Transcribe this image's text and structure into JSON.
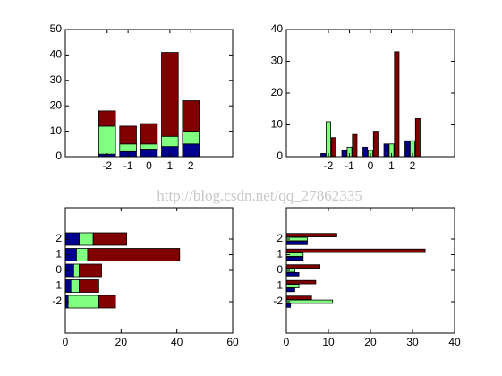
{
  "watermark": "http://blog.csdn.net/qq_27862335",
  "chart_data": [
    {
      "type": "bar",
      "stacked": true,
      "orientation": "vertical",
      "x": [
        -2,
        -1,
        0,
        1,
        2
      ],
      "xlim": [
        -4,
        4
      ],
      "xticks": [
        -2,
        -1,
        0,
        1,
        2
      ],
      "ylim": [
        0,
        50
      ],
      "yticks": [
        0,
        10,
        20,
        30,
        40,
        50
      ],
      "series": [
        {
          "color": "#00008f",
          "values": [
            1,
            2,
            3,
            4,
            5
          ]
        },
        {
          "color": "#80ff80",
          "values": [
            11,
            3,
            2,
            4,
            5
          ]
        },
        {
          "color": "#800000",
          "values": [
            6,
            7,
            8,
            33,
            12
          ]
        }
      ]
    },
    {
      "type": "bar",
      "stacked": false,
      "orientation": "vertical",
      "x": [
        -2,
        -1,
        0,
        1,
        2
      ],
      "xlim": [
        -4,
        4
      ],
      "xticks": [
        -2,
        -1,
        0,
        1,
        2
      ],
      "ylim": [
        0,
        40
      ],
      "yticks": [
        0,
        10,
        20,
        30,
        40
      ],
      "series": [
        {
          "color": "#00008f",
          "values": [
            1,
            2,
            3,
            4,
            5
          ]
        },
        {
          "color": "#80ff80",
          "values": [
            11,
            3,
            2,
            4,
            5
          ]
        },
        {
          "color": "#800000",
          "values": [
            6,
            7,
            8,
            33,
            12
          ]
        }
      ]
    },
    {
      "type": "bar",
      "stacked": true,
      "orientation": "horizontal",
      "y": [
        -2,
        -1,
        0,
        1,
        2
      ],
      "ylim": [
        -4,
        4
      ],
      "yticks": [
        -2,
        -1,
        0,
        1,
        2
      ],
      "xlim": [
        0,
        60
      ],
      "xticks": [
        0,
        20,
        40,
        60
      ],
      "series": [
        {
          "color": "#00008f",
          "values": [
            1,
            2,
            3,
            4,
            5
          ]
        },
        {
          "color": "#80ff80",
          "values": [
            11,
            3,
            2,
            4,
            5
          ]
        },
        {
          "color": "#800000",
          "values": [
            6,
            7,
            8,
            33,
            12
          ]
        }
      ]
    },
    {
      "type": "bar",
      "stacked": false,
      "orientation": "horizontal",
      "y": [
        -2,
        -1,
        0,
        1,
        2
      ],
      "ylim": [
        -4,
        4
      ],
      "yticks": [
        -2,
        -1,
        0,
        1,
        2
      ],
      "xlim": [
        0,
        40
      ],
      "xticks": [
        0,
        10,
        20,
        30,
        40
      ],
      "series": [
        {
          "color": "#00008f",
          "values": [
            1,
            2,
            3,
            4,
            5
          ]
        },
        {
          "color": "#80ff80",
          "values": [
            11,
            3,
            2,
            4,
            5
          ]
        },
        {
          "color": "#800000",
          "values": [
            6,
            7,
            8,
            33,
            12
          ]
        }
      ]
    }
  ]
}
